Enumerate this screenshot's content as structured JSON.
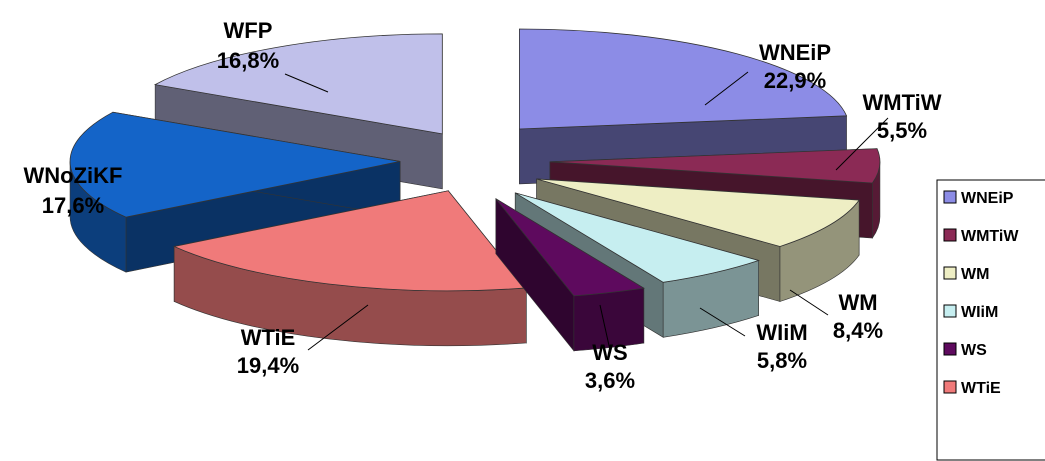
{
  "chart_data": {
    "type": "pie",
    "title": "",
    "style": "exploded-3d",
    "slices": [
      {
        "name": "WNEiP",
        "value": 22.9,
        "label": "22,9%",
        "color": "#8C8CE6"
      },
      {
        "name": "WMTiW",
        "value": 5.5,
        "label": "5,5%",
        "color": "#8B2A55"
      },
      {
        "name": "WM",
        "value": 8.4,
        "label": "8,4%",
        "color": "#EEEEC4"
      },
      {
        "name": "WIiM",
        "value": 5.8,
        "label": "5,8%",
        "color": "#C6EEF0"
      },
      {
        "name": "WS",
        "value": 3.6,
        "label": "3,6%",
        "color": "#5E0A5E"
      },
      {
        "name": "WTiE",
        "value": 19.4,
        "label": "19,4%",
        "color": "#F07A7A"
      },
      {
        "name": "WNoZiKF",
        "value": 17.6,
        "label": "17,6%",
        "color": "#1464C8"
      },
      {
        "name": "WFP",
        "value": 16.8,
        "label": "16,8%",
        "color": "#C0C0EA"
      }
    ],
    "legend": {
      "placement": "right",
      "items": [
        "WNEiP",
        "WMTiW",
        "WM",
        "WIiM",
        "WS",
        "WTiE"
      ]
    }
  }
}
